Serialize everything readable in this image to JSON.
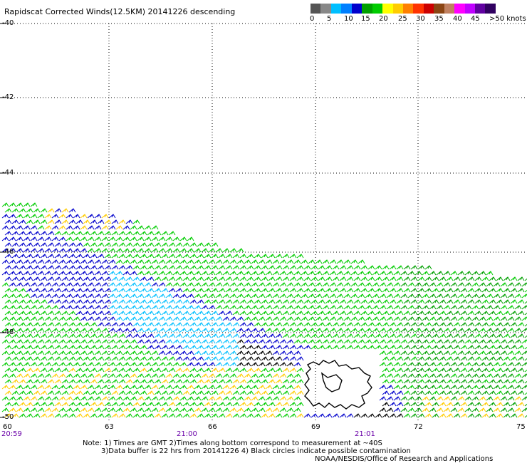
{
  "title": "Rapidscat Corrected Winds(12.5KM) 20141226 descending",
  "legend": {
    "colors": [
      "#555555",
      "#888888",
      "#00bfff",
      "#0080ff",
      "#0000cc",
      "#00a000",
      "#00cc00",
      "#ffff00",
      "#ffcc00",
      "#ff8000",
      "#ff3300",
      "#cc0000",
      "#8b4513",
      "#c08060",
      "#ff00ff",
      "#c000ff",
      "#6000a0",
      "#300060"
    ],
    "labels": [
      "0",
      "5",
      "10",
      "15",
      "20",
      "25",
      "30",
      "35",
      "40",
      "45",
      ">50 knots"
    ]
  },
  "latitude_labels": [
    "-40",
    "-42",
    "-44",
    "-46",
    "-48",
    "-50"
  ],
  "longitude_labels": [
    "60",
    "63",
    "66",
    "69",
    "72",
    "75"
  ],
  "time_labels": [
    "20:59",
    "21:00",
    "21:01"
  ],
  "notes": {
    "line1": "Note: 1) Times are GMT 2)Times along bottom correspond to measurement at ~40S",
    "line2": "3)Data buffer is 22 hrs from 20141226 4) Black circles indicate possible contamination",
    "line3": "NOAA/NESDIS/Office of Research and Applications"
  }
}
